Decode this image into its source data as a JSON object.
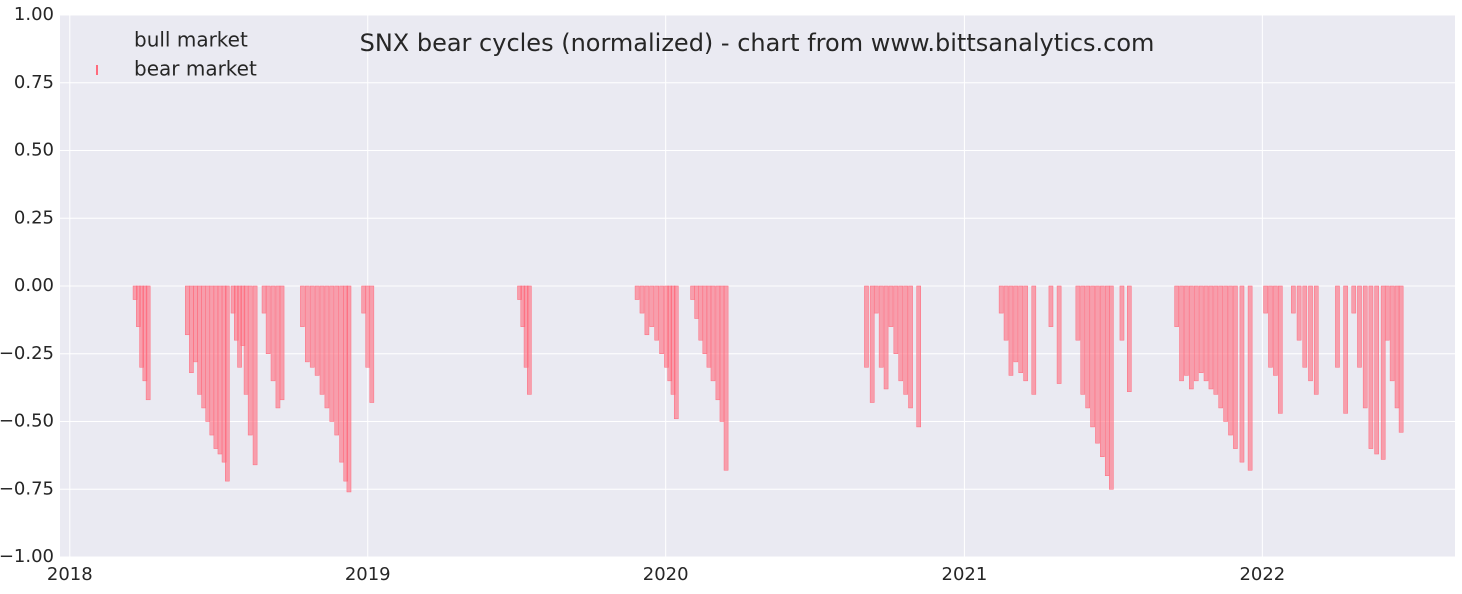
{
  "chart_data": {
    "type": "bar",
    "title": "SNX bear cycles (normalized)  - chart from www.bittsanalytics.com",
    "xlim": [
      "2017-12-20",
      "2022-08-25"
    ],
    "xticks": [
      {
        "value": "2018-01-01",
        "label": "2018"
      },
      {
        "value": "2019-01-01",
        "label": "2019"
      },
      {
        "value": "2020-01-01",
        "label": "2020"
      },
      {
        "value": "2021-01-01",
        "label": "2021"
      },
      {
        "value": "2022-01-01",
        "label": "2022"
      }
    ],
    "ylim": [
      -1,
      1
    ],
    "yticks": [
      {
        "value": -1,
        "label": "−1.00"
      },
      {
        "value": -0.75,
        "label": "−0.75"
      },
      {
        "value": -0.5,
        "label": "−0.50"
      },
      {
        "value": -0.25,
        "label": "−0.25"
      },
      {
        "value": 0,
        "label": "0.00"
      },
      {
        "value": 0.25,
        "label": "0.25"
      },
      {
        "value": 0.5,
        "label": "0.50"
      },
      {
        "value": 0.75,
        "label": "0.75"
      },
      {
        "value": 1,
        "label": "1.00"
      }
    ],
    "grid": true,
    "legend": "upper left",
    "series": [
      {
        "name": "bull market",
        "color": "#eaeaf2",
        "x": [],
        "values": []
      },
      {
        "name": "bear market",
        "color": "#ff6b7d",
        "x": [
          "2018-03-22",
          "2018-03-26",
          "2018-03-30",
          "2018-04-03",
          "2018-04-07",
          "2018-05-25",
          "2018-05-30",
          "2018-06-04",
          "2018-06-09",
          "2018-06-14",
          "2018-06-19",
          "2018-06-24",
          "2018-06-29",
          "2018-07-04",
          "2018-07-09",
          "2018-07-13",
          "2018-07-20",
          "2018-07-24",
          "2018-07-28",
          "2018-08-01",
          "2018-08-05",
          "2018-08-10",
          "2018-08-16",
          "2018-08-27",
          "2018-09-01",
          "2018-09-07",
          "2018-09-13",
          "2018-09-18",
          "2018-10-13",
          "2018-10-19",
          "2018-10-25",
          "2018-10-31",
          "2018-11-06",
          "2018-11-12",
          "2018-11-18",
          "2018-11-24",
          "2018-11-30",
          "2018-12-05",
          "2018-12-09",
          "2018-12-27",
          "2019-01-01",
          "2019-01-06",
          "2019-07-06",
          "2019-07-10",
          "2019-07-14",
          "2019-07-18",
          "2019-11-27",
          "2019-12-03",
          "2019-12-09",
          "2019-12-15",
          "2019-12-21",
          "2019-12-27",
          "2020-01-02",
          "2020-01-06",
          "2020-01-10",
          "2020-01-14",
          "2020-02-03",
          "2020-02-08",
          "2020-02-13",
          "2020-02-18",
          "2020-02-23",
          "2020-02-28",
          "2020-03-05",
          "2020-03-10",
          "2020-03-15",
          "2020-09-03",
          "2020-09-10",
          "2020-09-15",
          "2020-09-21",
          "2020-09-27",
          "2020-10-03",
          "2020-10-09",
          "2020-10-15",
          "2020-10-21",
          "2020-10-27",
          "2020-11-06",
          "2021-02-15",
          "2021-02-21",
          "2021-02-27",
          "2021-03-05",
          "2021-03-11",
          "2021-03-17",
          "2021-03-27",
          "2021-04-17",
          "2021-04-27",
          "2021-05-20",
          "2021-05-26",
          "2021-06-01",
          "2021-06-07",
          "2021-06-13",
          "2021-06-19",
          "2021-06-25",
          "2021-06-30",
          "2021-07-13",
          "2021-07-22",
          "2021-09-18",
          "2021-09-24",
          "2021-09-30",
          "2021-10-06",
          "2021-10-12",
          "2021-10-18",
          "2021-10-24",
          "2021-10-30",
          "2021-11-05",
          "2021-11-11",
          "2021-11-17",
          "2021-11-23",
          "2021-11-29",
          "2021-12-07",
          "2021-12-17",
          "2022-01-05",
          "2022-01-11",
          "2022-01-17",
          "2022-01-23",
          "2022-02-08",
          "2022-02-15",
          "2022-02-22",
          "2022-03-01",
          "2022-03-08",
          "2022-04-03",
          "2022-04-13",
          "2022-04-23",
          "2022-04-30",
          "2022-05-07",
          "2022-05-14",
          "2022-05-21",
          "2022-05-29",
          "2022-06-03",
          "2022-06-09",
          "2022-06-15",
          "2022-06-20"
        ],
        "values": [
          -0.05,
          -0.15,
          -0.3,
          -0.35,
          -0.42,
          -0.18,
          -0.32,
          -0.28,
          -0.4,
          -0.45,
          -0.5,
          -0.55,
          -0.6,
          -0.62,
          -0.65,
          -0.72,
          -0.1,
          -0.2,
          -0.3,
          -0.22,
          -0.4,
          -0.55,
          -0.66,
          -0.1,
          -0.25,
          -0.35,
          -0.45,
          -0.42,
          -0.15,
          -0.28,
          -0.3,
          -0.33,
          -0.4,
          -0.45,
          -0.5,
          -0.55,
          -0.65,
          -0.72,
          -0.76,
          -0.1,
          -0.3,
          -0.43,
          -0.05,
          -0.15,
          -0.3,
          -0.4,
          -0.05,
          -0.1,
          -0.18,
          -0.15,
          -0.2,
          -0.25,
          -0.3,
          -0.35,
          -0.4,
          -0.49,
          -0.05,
          -0.12,
          -0.2,
          -0.25,
          -0.3,
          -0.35,
          -0.42,
          -0.5,
          -0.68,
          -0.3,
          -0.43,
          -0.1,
          -0.3,
          -0.38,
          -0.15,
          -0.25,
          -0.35,
          -0.4,
          -0.45,
          -0.52,
          -0.1,
          -0.2,
          -0.33,
          -0.28,
          -0.32,
          -0.35,
          -0.4,
          -0.15,
          -0.36,
          -0.2,
          -0.4,
          -0.45,
          -0.52,
          -0.58,
          -0.63,
          -0.7,
          -0.75,
          -0.2,
          -0.39,
          -0.15,
          -0.35,
          -0.33,
          -0.38,
          -0.35,
          -0.32,
          -0.35,
          -0.38,
          -0.4,
          -0.45,
          -0.5,
          -0.55,
          -0.6,
          -0.65,
          -0.68,
          -0.1,
          -0.3,
          -0.33,
          -0.47,
          -0.1,
          -0.2,
          -0.3,
          -0.35,
          -0.4,
          -0.3,
          -0.47,
          -0.1,
          -0.3,
          -0.45,
          -0.6,
          -0.62,
          -0.64,
          -0.2,
          -0.35,
          -0.45,
          -0.54
        ]
      }
    ]
  }
}
